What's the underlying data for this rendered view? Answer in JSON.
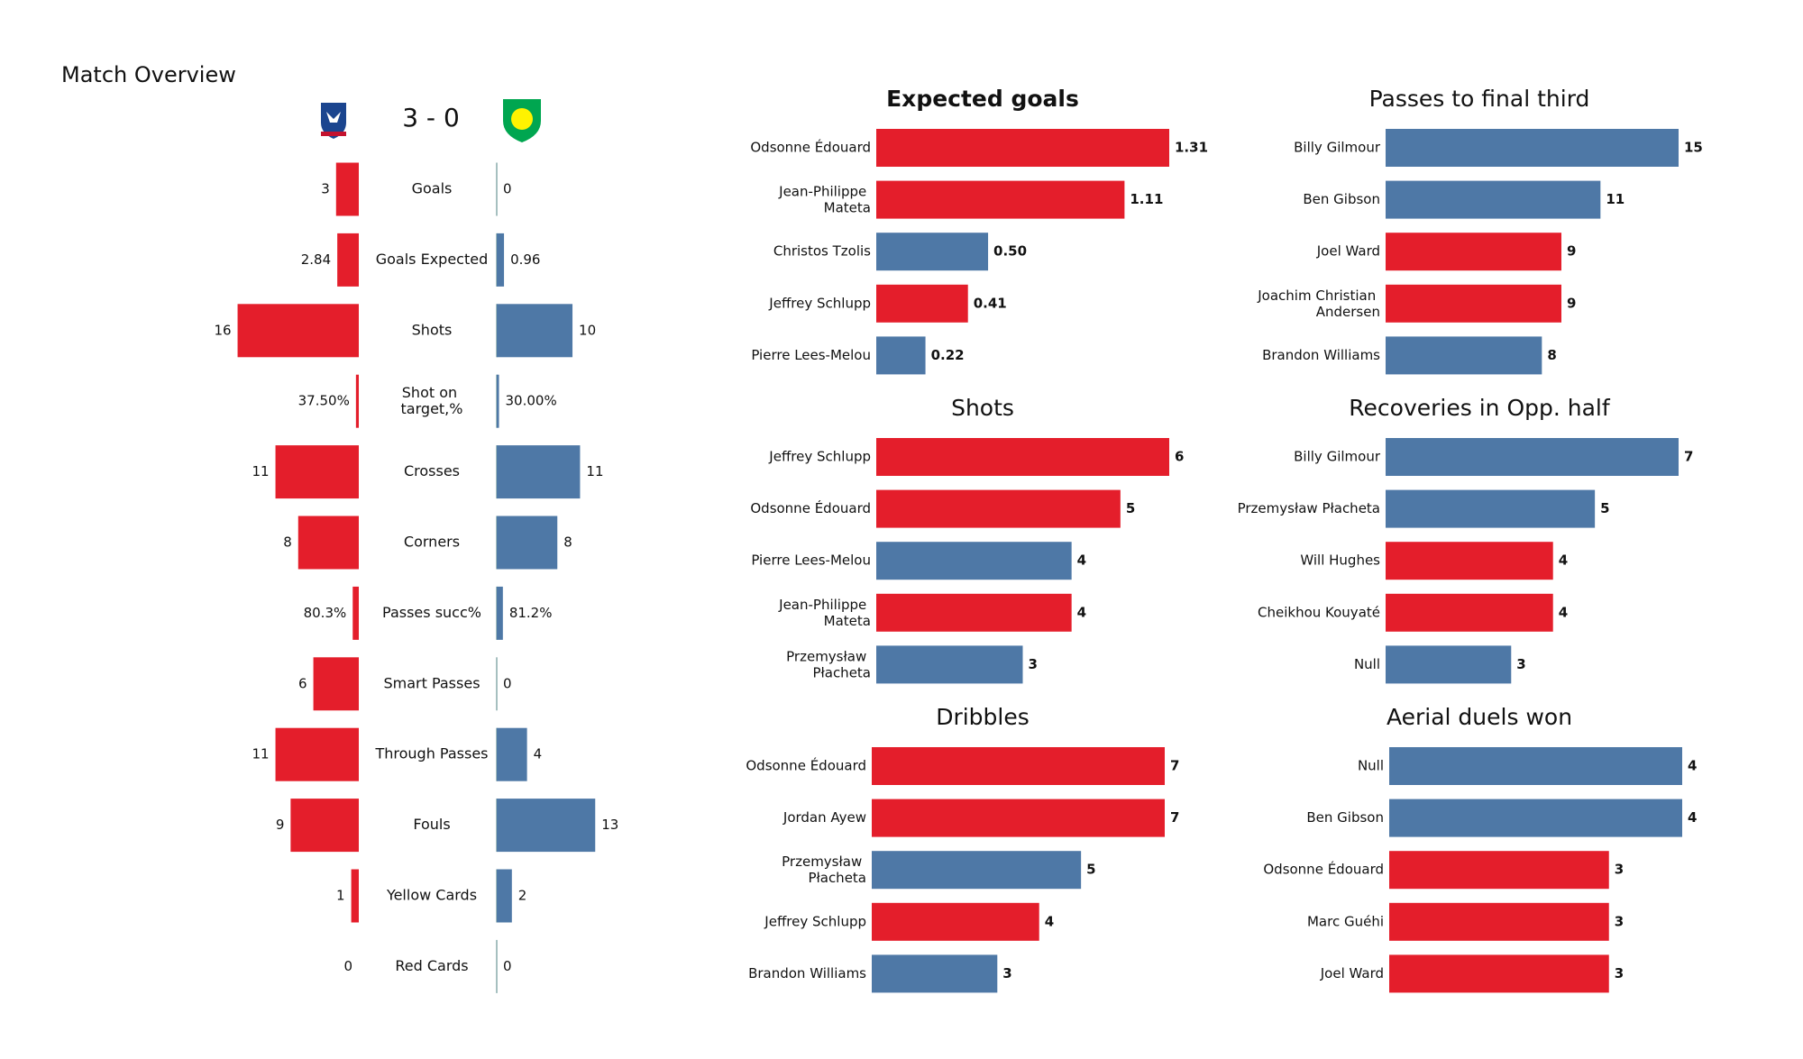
{
  "chart_data": [
    {
      "type": "diverging-bar",
      "title": "Match Overview",
      "score": "3 - 0",
      "categories": [
        "Goals",
        "Goals Expected",
        "Shots",
        "Shot on target,%",
        "Crosses",
        "Corners",
        "Passes succ%",
        "Smart Passes",
        "Through Passes",
        "Fouls",
        "Yellow Cards",
        "Red Cards"
      ],
      "series": [
        {
          "color": "#e41e2b",
          "values": [
            3,
            2.84,
            16,
            37.5,
            11,
            8,
            80.3,
            6,
            11,
            9,
            1,
            0
          ],
          "value_labels": [
            "3",
            "2.84",
            "16",
            "37.50%",
            "11",
            "8",
            "80.3%",
            "6",
            "11",
            "9",
            "1",
            "0"
          ]
        },
        {
          "color": "#4e78a6",
          "values": [
            0,
            0.96,
            10,
            30,
            11,
            8,
            81.2,
            0,
            4,
            13,
            2,
            0
          ],
          "value_labels": [
            "0",
            "0.96",
            "10",
            "30.00%",
            "11",
            "8",
            "81.2%",
            "0",
            "4",
            "13",
            "2",
            "0"
          ]
        }
      ]
    },
    {
      "type": "hbar",
      "title": "Expected goals",
      "categories": [
        "Odsonne Édouard",
        "Jean-Philippe Mateta",
        "Christos Tzolis",
        "Jeffrey  Schlupp",
        "Pierre Lees-Melou"
      ],
      "values": [
        1.31,
        1.11,
        0.5,
        0.41,
        0.22
      ],
      "value_labels": [
        "1.31",
        "1.11",
        "0.50",
        "0.41",
        "0.22"
      ],
      "colors": [
        "#e41e2b",
        "#e41e2b",
        "#4e78a6",
        "#e41e2b",
        "#4e78a6"
      ]
    },
    {
      "type": "hbar",
      "title": "Passes to final third",
      "categories": [
        "Billy Gilmour",
        "Ben Gibson",
        "Joel Ward",
        "Joachim Christian Andersen",
        "Brandon Williams"
      ],
      "values": [
        15,
        11,
        9,
        9,
        8
      ],
      "colors": [
        "#4e78a6",
        "#4e78a6",
        "#e41e2b",
        "#e41e2b",
        "#4e78a6"
      ]
    },
    {
      "type": "hbar",
      "title": "Shots",
      "categories": [
        "Jeffrey  Schlupp",
        "Odsonne Édouard",
        "Pierre Lees-Melou",
        "Jean-Philippe Mateta",
        "Przemysław Płacheta"
      ],
      "values": [
        6,
        5,
        4,
        4,
        3
      ],
      "colors": [
        "#e41e2b",
        "#e41e2b",
        "#4e78a6",
        "#e41e2b",
        "#4e78a6"
      ]
    },
    {
      "type": "hbar",
      "title": "Recoveries in Opp. half",
      "categories": [
        "Billy Gilmour",
        "Przemysław Płacheta",
        "Will Hughes",
        "Cheikhou Kouyaté",
        "Null"
      ],
      "values": [
        7,
        5,
        4,
        4,
        3
      ],
      "colors": [
        "#4e78a6",
        "#4e78a6",
        "#e41e2b",
        "#e41e2b",
        "#4e78a6"
      ]
    },
    {
      "type": "hbar",
      "title": "Dribbles",
      "categories": [
        "Odsonne Édouard",
        "Jordan Ayew",
        "Przemysław Płacheta",
        "Jeffrey  Schlupp",
        "Brandon Williams"
      ],
      "values": [
        7,
        7,
        5,
        4,
        3
      ],
      "colors": [
        "#e41e2b",
        "#e41e2b",
        "#4e78a6",
        "#e41e2b",
        "#4e78a6"
      ]
    },
    {
      "type": "hbar",
      "title": "Aerial duels won",
      "categories": [
        "Null",
        "Ben Gibson",
        "Odsonne Édouard",
        "Marc Guéhi",
        "Joel Ward"
      ],
      "values": [
        4,
        4,
        3,
        3,
        3
      ],
      "colors": [
        "#4e78a6",
        "#4e78a6",
        "#e41e2b",
        "#e41e2b",
        "#e41e2b"
      ]
    }
  ]
}
